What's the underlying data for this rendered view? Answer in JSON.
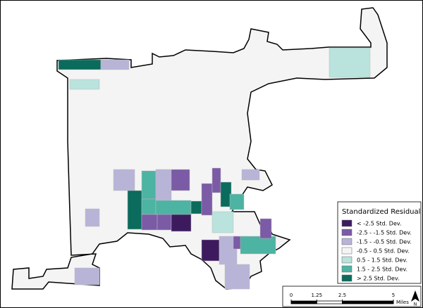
{
  "legend": {
    "title": "Standardized Residual",
    "items": [
      {
        "label": "< -2.5 Std. Dev.",
        "color": "#3d1a5e"
      },
      {
        "label": "-2.5 - -1.5 Std. Dev.",
        "color": "#7b5aa6"
      },
      {
        "label": "-1.5 - -0.5 Std. Dev.",
        "color": "#b8b4d8"
      },
      {
        "label": "-0.5 - 0.5 Std. Dev.",
        "color": "#f4f4f4"
      },
      {
        "label": "0.5 - 1.5 Std. Dev.",
        "color": "#b9e3dc"
      },
      {
        "label": "1.5 - 2.5 Std. Dev.",
        "color": "#4db3a3"
      },
      {
        "label": "> 2.5 Std. Dev.",
        "color": "#0b6b5c"
      }
    ]
  },
  "scale_bar": {
    "ticks": [
      0,
      1.25,
      2.5,
      5
    ],
    "unit": "Miles"
  },
  "north_arrow": {
    "label": "N"
  }
}
